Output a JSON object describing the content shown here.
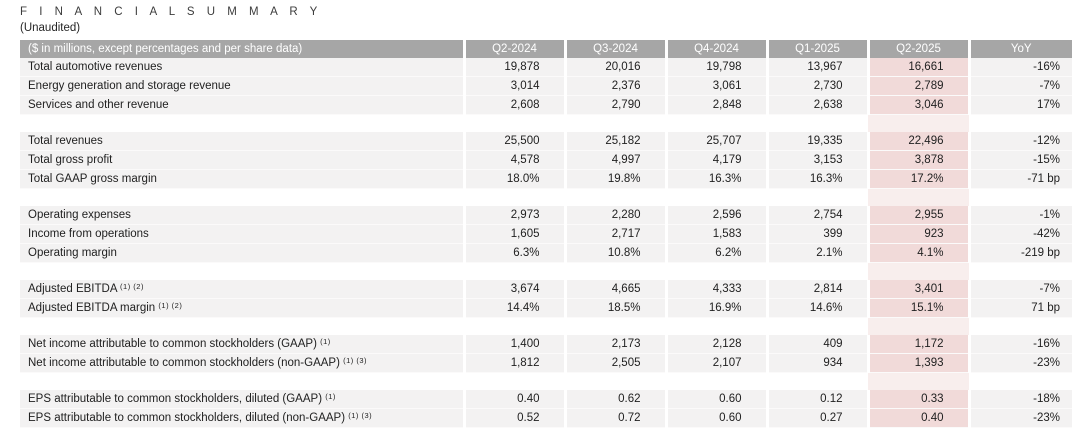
{
  "page": {
    "title": "F I N A N C I A L   S U M M A R Y",
    "subtitle": "(Unaudited)"
  },
  "table": {
    "header": {
      "label": "($ in millions, except percentages and per share data)",
      "columns": [
        "Q2-2024",
        "Q3-2024",
        "Q4-2024",
        "Q1-2025",
        "Q2-2025",
        "YoY"
      ]
    },
    "highlight_column": "Q2-2025",
    "colors": {
      "header_bg": "#a6a6a6",
      "row_bg": "#f3f2f2",
      "highlight_bg": "#f1dad9",
      "highlight_gap_bg": "#f8eeed",
      "header_text": "#ffffff",
      "body_text": "#212121"
    },
    "sections": [
      {
        "rows": [
          {
            "label": "Total automotive revenues",
            "sup": "",
            "values": [
              "19,878",
              "20,016",
              "19,798",
              "13,967",
              "16,661",
              "-16%"
            ]
          },
          {
            "label": "Energy generation and storage revenue",
            "sup": "",
            "values": [
              "3,014",
              "2,376",
              "3,061",
              "2,730",
              "2,789",
              "-7%"
            ]
          },
          {
            "label": "Services and other revenue",
            "sup": "",
            "values": [
              "2,608",
              "2,790",
              "2,848",
              "2,638",
              "3,046",
              "17%"
            ]
          }
        ]
      },
      {
        "rows": [
          {
            "label": "Total revenues",
            "sup": "",
            "values": [
              "25,500",
              "25,182",
              "25,707",
              "19,335",
              "22,496",
              "-12%"
            ]
          },
          {
            "label": "Total gross profit",
            "sup": "",
            "values": [
              "4,578",
              "4,997",
              "4,179",
              "3,153",
              "3,878",
              "-15%"
            ]
          },
          {
            "label": "Total GAAP gross margin",
            "sup": "",
            "values": [
              "18.0%",
              "19.8%",
              "16.3%",
              "16.3%",
              "17.2%",
              "-71 bp"
            ]
          }
        ]
      },
      {
        "rows": [
          {
            "label": "Operating expenses",
            "sup": "",
            "values": [
              "2,973",
              "2,280",
              "2,596",
              "2,754",
              "2,955",
              "-1%"
            ]
          },
          {
            "label": "Income from operations",
            "sup": "",
            "values": [
              "1,605",
              "2,717",
              "1,583",
              "399",
              "923",
              "-42%"
            ]
          },
          {
            "label": "Operating margin",
            "sup": "",
            "values": [
              "6.3%",
              "10.8%",
              "6.2%",
              "2.1%",
              "4.1%",
              "-219 bp"
            ]
          }
        ]
      },
      {
        "rows": [
          {
            "label": "Adjusted EBITDA",
            "sup": "(1) (2)",
            "values": [
              "3,674",
              "4,665",
              "4,333",
              "2,814",
              "3,401",
              "-7%"
            ]
          },
          {
            "label": "Adjusted EBITDA margin",
            "sup": "(1) (2)",
            "values": [
              "14.4%",
              "18.5%",
              "16.9%",
              "14.6%",
              "15.1%",
              "71 bp"
            ]
          }
        ]
      },
      {
        "rows": [
          {
            "label": "Net income attributable to common stockholders (GAAP)",
            "sup": "(1)",
            "values": [
              "1,400",
              "2,173",
              "2,128",
              "409",
              "1,172",
              "-16%"
            ]
          },
          {
            "label": "Net income attributable to common stockholders (non-GAAP)",
            "sup": "(1) (3)",
            "values": [
              "1,812",
              "2,505",
              "2,107",
              "934",
              "1,393",
              "-23%"
            ]
          }
        ]
      },
      {
        "rows": [
          {
            "label": "EPS attributable to common stockholders, diluted (GAAP)",
            "sup": "(1)",
            "values": [
              "0.40",
              "0.62",
              "0.60",
              "0.12",
              "0.33",
              "-18%"
            ]
          },
          {
            "label": "EPS attributable to common stockholders, diluted (non-GAAP)",
            "sup": "(1) (3)",
            "values": [
              "0.52",
              "0.72",
              "0.60",
              "0.27",
              "0.40",
              "-23%"
            ]
          }
        ]
      }
    ]
  }
}
